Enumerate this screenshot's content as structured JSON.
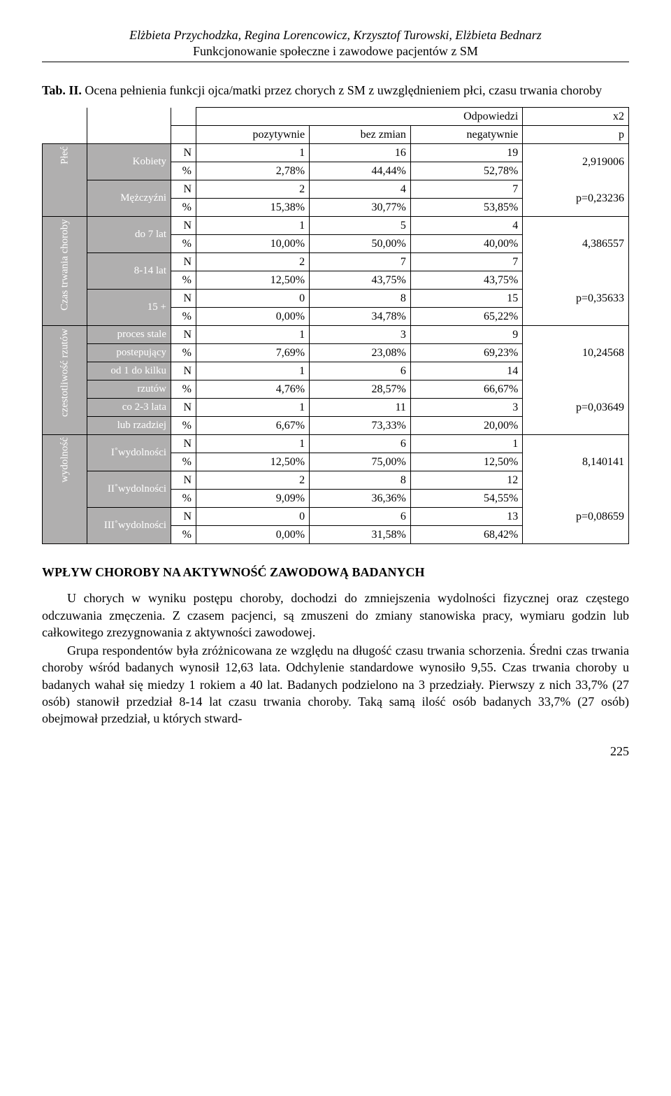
{
  "header": {
    "authors": "Elżbieta Przychodzka, Regina Lorencowicz, Krzysztof Turowski, Elżbieta Bednarz",
    "subtitle": "Funkcjonowanie społeczne i zawodowe pacjentów z SM"
  },
  "caption": {
    "label": "Tab. II.",
    "text": " Ocena pełnienia funkcji ojca/matki przez chorych z SM z uwzględnieniem płci, czasu trwania choroby"
  },
  "columns": {
    "odpowiedzi": "Odpowiedzi",
    "pozytywnie": "pozytywnie",
    "bezzmian": "bez zmian",
    "negatywnie": "negatywnie",
    "x2": "x2",
    "p": "p"
  },
  "sidecats": {
    "plec": "Płeć",
    "czas": "Czas trwania choroby",
    "czest": "czestotliwość rzutów",
    "wyd": "wydolność"
  },
  "rows": {
    "kobiety": "Kobiety",
    "mezc": "Mężczyźni",
    "do7": "do 7 lat",
    "l814": "8-14 lat",
    "l15": "15 +",
    "proces": "proces stale",
    "post": "postepujący",
    "od1a": "od 1 do kilku",
    "od1b": "rzutów",
    "co23a": "co 2-3 lata",
    "co23b": "lub rzadziej",
    "w1": "I˚wydolności",
    "w2": "II˚wydolności",
    "w3": "III˚wydolności"
  },
  "np": {
    "N": "N",
    "p": "%"
  },
  "vals": {
    "r1": [
      "1",
      "16",
      "19"
    ],
    "r1p": [
      "2,78%",
      "44,44%",
      "52,78%"
    ],
    "r2": [
      "2",
      "4",
      "7"
    ],
    "r2p": [
      "15,38%",
      "30,77%",
      "53,85%"
    ],
    "r3": [
      "1",
      "5",
      "4"
    ],
    "r3p": [
      "10,00%",
      "50,00%",
      "40,00%"
    ],
    "r4": [
      "2",
      "7",
      "7"
    ],
    "r4p": [
      "12,50%",
      "43,75%",
      "43,75%"
    ],
    "r5": [
      "0",
      "8",
      "15"
    ],
    "r5p": [
      "0,00%",
      "34,78%",
      "65,22%"
    ],
    "r6": [
      "1",
      "3",
      "9"
    ],
    "r6p": [
      "7,69%",
      "23,08%",
      "69,23%"
    ],
    "r7": [
      "1",
      "6",
      "14"
    ],
    "r7p": [
      "4,76%",
      "28,57%",
      "66,67%"
    ],
    "r8": [
      "1",
      "11",
      "3"
    ],
    "r8p": [
      "6,67%",
      "73,33%",
      "20,00%"
    ],
    "r9": [
      "1",
      "6",
      "1"
    ],
    "r9p": [
      "12,50%",
      "75,00%",
      "12,50%"
    ],
    "r10": [
      "2",
      "8",
      "12"
    ],
    "r10p": [
      "9,09%",
      "36,36%",
      "54,55%"
    ],
    "r11": [
      "0",
      "6",
      "13"
    ],
    "r11p": [
      "0,00%",
      "31,58%",
      "68,42%"
    ]
  },
  "stats": {
    "s1": "2,919006",
    "s2": "p=0,23236",
    "s3": "4,386557",
    "s4": "p=0,35633",
    "s5": "10,24568",
    "s6": "p=0,03649",
    "s7": "8,140141",
    "s8": "p=0,08659"
  },
  "section_head": "WPŁYW CHOROBY NA AKTYWNOŚĆ ZAWODOWĄ BADANYCH",
  "para1": "U chorych w wyniku postępu choroby, dochodzi do zmniejszenia wydolności fizycznej oraz częstego odczuwania zmęczenia. Z czasem pacjenci, są zmuszeni do zmiany stanowiska pracy, wymiaru godzin lub całkowitego zrezygnowania z aktywności zawodowej.",
  "para2": "Grupa respondentów była zróżnicowana ze względu na długość czasu trwania schorzenia. Średni czas trwania choroby wśród badanych wynosił 12,63 lata. Odchylenie standardowe wynosiło 9,55. Czas trwania choroby u badanych wahał się miedzy 1 rokiem a 40 lat. Badanych podzielono na 3 przedziały. Pierwszy z nich 33,7% (27 osób) stanowił przedział 8-14 lat czasu trwania choroby. Taką samą ilość osób badanych 33,7% (27 osób) obejmował przedział, u których stward-",
  "pagenum": "225"
}
